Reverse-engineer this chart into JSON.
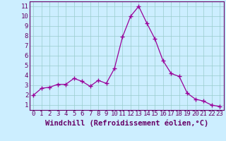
{
  "x": [
    0,
    1,
    2,
    3,
    4,
    5,
    6,
    7,
    8,
    9,
    10,
    11,
    12,
    13,
    14,
    15,
    16,
    17,
    18,
    19,
    20,
    21,
    22,
    23
  ],
  "y": [
    2.0,
    2.7,
    2.8,
    3.1,
    3.1,
    3.7,
    3.4,
    2.9,
    3.5,
    3.2,
    4.7,
    7.9,
    10.0,
    11.0,
    9.3,
    7.7,
    5.5,
    4.2,
    3.9,
    2.2,
    1.6,
    1.4,
    1.0,
    0.85
  ],
  "line_color": "#990099",
  "marker": "+",
  "marker_size": 4,
  "background_color": "#cceeff",
  "grid_color": "#aadddd",
  "xlabel": "Windchill (Refroidissement éolien,°C)",
  "xlim": [
    -0.5,
    23.5
  ],
  "ylim": [
    0.5,
    11.5
  ],
  "yticks": [
    1,
    2,
    3,
    4,
    5,
    6,
    7,
    8,
    9,
    10,
    11
  ],
  "xticks": [
    0,
    1,
    2,
    3,
    4,
    5,
    6,
    7,
    8,
    9,
    10,
    11,
    12,
    13,
    14,
    15,
    16,
    17,
    18,
    19,
    20,
    21,
    22,
    23
  ],
  "tick_fontsize": 6.5,
  "label_fontsize": 7.5,
  "label_color": "#660066",
  "tick_color": "#660066",
  "axis_bg": "#cceeff",
  "border_color": "#660066",
  "grid_line_color": "#99cccc"
}
